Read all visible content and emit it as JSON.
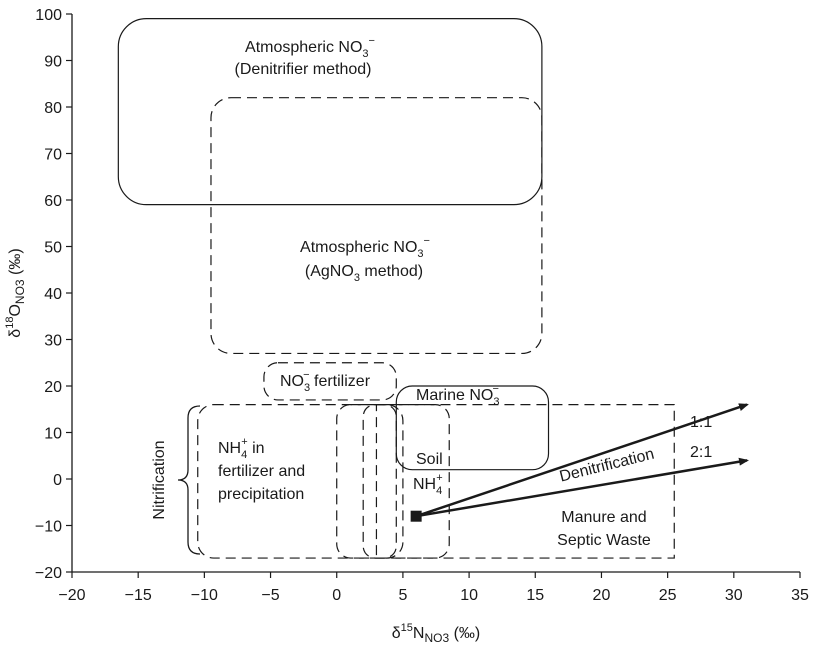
{
  "axes": {
    "x_label_main": "δ",
    "x_label_sup": "15",
    "x_label_n": "N",
    "x_label_sub": "NO3",
    "x_label_unit": " (‰)",
    "y_label_main": "δ",
    "y_label_sup": "18",
    "y_label_o": "O",
    "y_label_sub": "NO3",
    "y_label_unit": " (‰)",
    "x_ticks": [
      "−20",
      "−15",
      "−10",
      "−5",
      "0",
      "5",
      "10",
      "15",
      "20",
      "25",
      "30",
      "35"
    ],
    "y_ticks": [
      "100",
      "90",
      "80",
      "70",
      "60",
      "50",
      "40",
      "30",
      "20",
      "10",
      "0",
      "−10",
      "−20"
    ],
    "xlim": [
      -20,
      35
    ],
    "ylim": [
      -20,
      100
    ]
  },
  "regions": {
    "atm_denitrifier": {
      "line1": "Atmospheric NO",
      "line1_sub": "3",
      "line1_sup": "−",
      "line2": "(Denitrifier method)",
      "x_range": [
        -16.5,
        15.5
      ],
      "y_range": [
        59,
        99
      ],
      "style": "solid"
    },
    "atm_agno3": {
      "line1": "Atmospheric NO",
      "line1_sub": "3",
      "line1_sup": "−",
      "line2_a": "(AgNO",
      "line2_sub": "3",
      "line2_b": " method)",
      "x_range": [
        -9.5,
        15.5
      ],
      "y_range": [
        27,
        82
      ],
      "style": "dashed"
    },
    "no3_fertilizer": {
      "text_a": "NO",
      "text_sub": "3",
      "text_sup": "−",
      "text_b": " fertilizer",
      "x_range": [
        -5.5,
        4.5
      ],
      "y_range": [
        17,
        25
      ],
      "style": "dashed"
    },
    "marine": {
      "text_a": "Marine NO",
      "text_sub": "3",
      "text_sup": "−",
      "x_range": [
        4.5,
        16
      ],
      "y_range": [
        2,
        20
      ],
      "style": "solid"
    },
    "nh4_fertilizer": {
      "line1_a": "NH",
      "line1_sub": "4",
      "line1_sup": "+",
      "line1_b": " in",
      "line2": "fertilizer and",
      "line3": "precipitation",
      "x_range": [
        -10.5,
        5
      ],
      "y_range": [
        -17,
        16
      ],
      "style": "dashed"
    },
    "soil_nh4": {
      "line1": "Soil",
      "line2_a": "NH",
      "line2_sub": "4",
      "line2_sup": "+",
      "x_range_outer": [
        0,
        8.5
      ],
      "x_range_inner": [
        2,
        4.5
      ],
      "y_range": [
        -17,
        16
      ],
      "style": "dashed"
    },
    "manure": {
      "line1": "Manure and",
      "line2": "Septic Waste",
      "x_range": [
        3,
        25.5
      ],
      "y_range": [
        -17,
        16
      ],
      "style": "dashed"
    },
    "nitrification": {
      "text": "Nitrification"
    },
    "denitrification": {
      "text": "Denitrification",
      "origin": [
        6,
        -8
      ],
      "ratio_1_1_label": "1:1",
      "ratio_1_1_end": [
        31,
        16
      ],
      "ratio_2_1_label": "2:1",
      "ratio_2_1_end": [
        31,
        4
      ]
    }
  }
}
